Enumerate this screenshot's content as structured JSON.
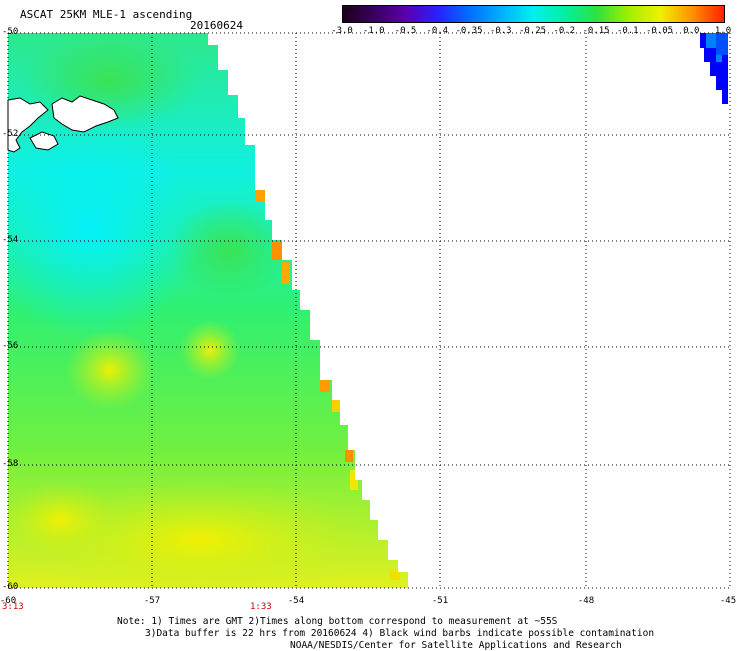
{
  "header": {
    "title": "ASCAT 25KM MLE-1 ascending",
    "date": "20160624"
  },
  "colorbar": {
    "labels": [
      "-3.0",
      "-1.0",
      "-0.5",
      "-0.4",
      "-0.35",
      "-0.3",
      "-0.25",
      "-0.2",
      "-0.15",
      "-0.1",
      "-0.05",
      "0.0",
      "1.0"
    ],
    "colors": [
      "#1a001a",
      "#3a0060",
      "#5a00b0",
      "#2a20ff",
      "#0070ff",
      "#00b0ff",
      "#00f0f0",
      "#00f0a0",
      "#30e040",
      "#a0f000",
      "#f0f000",
      "#ff9000",
      "#ff2000"
    ]
  },
  "axes": {
    "lat_labels": [
      "-50",
      "-52",
      "-54",
      "-56",
      "-58",
      "-60"
    ],
    "lon_labels": [
      "-60",
      "-57",
      "-54",
      "-51",
      "-48",
      "-45"
    ],
    "time_labels": [
      "3:13",
      "1:33"
    ]
  },
  "notes": {
    "line1": "Note: 1) Times are GMT 2)Times along bottom correspond to measurement at ~55S",
    "line2": "3)Data buffer is 22 hrs from 20160624 4) Black wind barbs indicate possible contamination",
    "line3": "NOAA/NESDIS/Center for Satellite Applications and Research"
  }
}
